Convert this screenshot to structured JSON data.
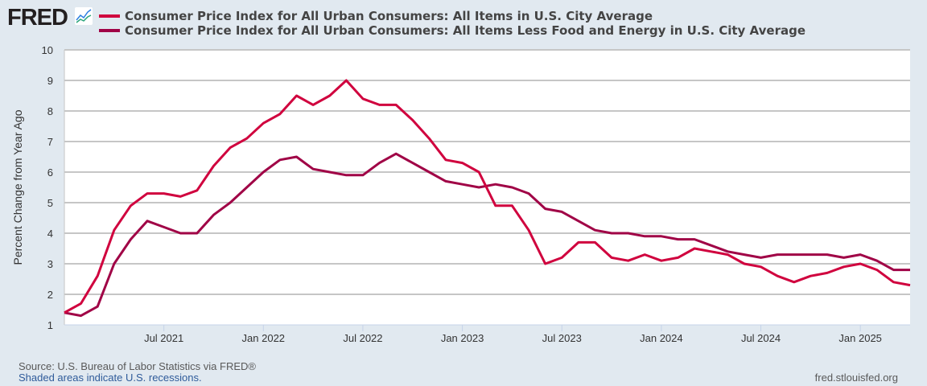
{
  "header": {
    "logo": "FRED"
  },
  "footer": {
    "source": "Source: U.S. Bureau of Labor Statistics via FRED®",
    "recessions": "Shaded areas indicate U.S. recessions.",
    "url": "fred.stlouisfed.org"
  },
  "chart_data": {
    "type": "line",
    "title": "",
    "xlabel": "",
    "ylabel": "Percent Change from Year Ago",
    "ylim": [
      1,
      10
    ],
    "yticks": [
      "1",
      "2",
      "3",
      "4",
      "5",
      "6",
      "7",
      "8",
      "9",
      "10"
    ],
    "xticks": [
      {
        "label": "Jul 2021",
        "index": 6
      },
      {
        "label": "Jan 2022",
        "index": 12
      },
      {
        "label": "Jul 2022",
        "index": 18
      },
      {
        "label": "Jan 2023",
        "index": 24
      },
      {
        "label": "Jul 2023",
        "index": 30
      },
      {
        "label": "Jan 2024",
        "index": 36
      },
      {
        "label": "Jul 2024",
        "index": 42
      },
      {
        "label": "Jan 2025",
        "index": 48
      }
    ],
    "x_start": "Jan 2021",
    "x_end": "Apr 2025",
    "frequency": "monthly",
    "grid": true,
    "legend_position": "top",
    "series": [
      {
        "name": "Consumer Price Index for All Urban Consumers: All Items in U.S. City Average",
        "color": "#d0023e",
        "values": [
          1.4,
          1.7,
          2.6,
          4.1,
          4.9,
          5.3,
          5.3,
          5.2,
          5.4,
          6.2,
          6.8,
          7.1,
          7.6,
          7.9,
          8.5,
          8.2,
          8.5,
          9.0,
          8.4,
          8.2,
          8.2,
          7.7,
          7.1,
          6.4,
          6.3,
          6.0,
          4.9,
          4.9,
          4.1,
          3.0,
          3.2,
          3.7,
          3.7,
          3.2,
          3.1,
          3.3,
          3.1,
          3.2,
          3.5,
          3.4,
          3.3,
          3.0,
          2.9,
          2.6,
          2.4,
          2.6,
          2.7,
          2.9,
          3.0,
          2.8,
          2.4,
          2.3
        ]
      },
      {
        "name": "Consumer Price Index for All Urban Consumers: All Items Less Food and Energy in U.S. City Average",
        "color": "#a00346",
        "values": [
          1.4,
          1.3,
          1.6,
          3.0,
          3.8,
          4.4,
          4.2,
          4.0,
          4.0,
          4.6,
          5.0,
          5.5,
          6.0,
          6.4,
          6.5,
          6.1,
          6.0,
          5.9,
          5.9,
          6.3,
          6.6,
          6.3,
          6.0,
          5.7,
          5.6,
          5.5,
          5.6,
          5.5,
          5.3,
          4.8,
          4.7,
          4.4,
          4.1,
          4.0,
          4.0,
          3.9,
          3.9,
          3.8,
          3.8,
          3.6,
          3.4,
          3.3,
          3.2,
          3.3,
          3.3,
          3.3,
          3.3,
          3.2,
          3.3,
          3.1,
          2.8,
          2.8
        ]
      }
    ]
  }
}
